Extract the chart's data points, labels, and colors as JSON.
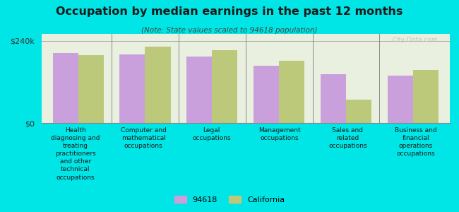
{
  "title": "Occupation by median earnings in the past 12 months",
  "subtitle": "(Note: State values scaled to 94618 population)",
  "background_color": "#00e5e5",
  "plot_background_color": "#eaf0e0",
  "categories": [
    "Health\ndiagnosing and\ntreating\npractitioners\nand other\ntechnical\noccupations",
    "Computer and\nmathematical\noccupations",
    "Legal\noccupations",
    "Management\noccupations",
    "Sales and\nrelated\noccupations",
    "Business and\nfinancial\noperations\noccupations"
  ],
  "values_94618": [
    205000,
    200000,
    193000,
    168000,
    143000,
    138000
  ],
  "values_california": [
    198000,
    222000,
    212000,
    182000,
    68000,
    155000
  ],
  "ylim": [
    0,
    260000
  ],
  "yticks": [
    0,
    240000
  ],
  "ytick_labels": [
    "$0",
    "$240k"
  ],
  "color_94618": "#c9a0dc",
  "color_california": "#bcc87a",
  "legend_labels": [
    "94618",
    "California"
  ],
  "bar_width": 0.38,
  "watermark": "City-Data.com"
}
